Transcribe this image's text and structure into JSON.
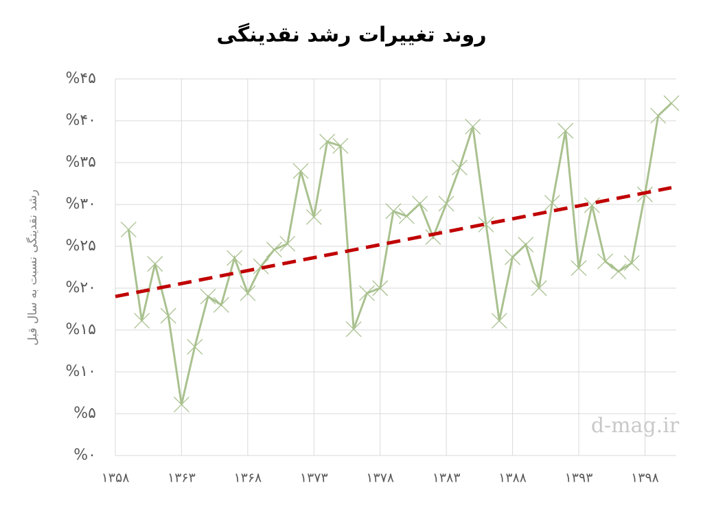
{
  "chart_data": {
    "type": "line",
    "title": "روند تغییرات رشد نقدینگی",
    "y_label": "رشد نقدینگی نسبت به سال قبل",
    "watermark": "d-mag.ir",
    "x": [
      1359,
      1360,
      1361,
      1362,
      1363,
      1364,
      1365,
      1366,
      1367,
      1368,
      1369,
      1370,
      1371,
      1372,
      1373,
      1374,
      1375,
      1376,
      1377,
      1378,
      1379,
      1380,
      1381,
      1382,
      1383,
      1384,
      1385,
      1386,
      1387,
      1388,
      1389,
      1390,
      1391,
      1392,
      1393,
      1394,
      1395,
      1396,
      1397,
      1398,
      1399,
      1400
    ],
    "series": [
      {
        "color": "#a9c18f",
        "values": [
          27.0,
          16.1,
          22.9,
          16.7,
          6.1,
          13.0,
          19.0,
          18.0,
          23.6,
          19.4,
          22.6,
          24.6,
          25.3,
          34.0,
          28.5,
          37.5,
          37.0,
          15.1,
          19.4,
          20.0,
          29.2,
          28.6,
          30.1,
          26.1,
          30.1,
          34.4,
          39.3,
          27.6,
          16.1,
          23.7,
          25.2,
          20.0,
          30.2,
          38.8,
          22.4,
          29.9,
          23.2,
          22.0,
          23.0,
          31.2,
          40.6,
          42.1
        ]
      },
      {
        "color": "#c00000",
        "dashed": true,
        "x": [
          1358,
          1400
        ],
        "values": [
          19.0,
          32.0
        ]
      }
    ],
    "xlim": [
      1358,
      1400
    ],
    "xticks": [
      {
        "value": 1358,
        "label": "۱۳۵۸"
      },
      {
        "value": 1363,
        "label": "۱۳۶۳"
      },
      {
        "value": 1368,
        "label": "۱۳۶۸"
      },
      {
        "value": 1373,
        "label": "۱۳۷۳"
      },
      {
        "value": 1378,
        "label": "۱۳۷۸"
      },
      {
        "value": 1383,
        "label": "۱۳۸۳"
      },
      {
        "value": 1388,
        "label": "۱۳۸۸"
      },
      {
        "value": 1393,
        "label": "۱۳۹۳"
      },
      {
        "value": 1398,
        "label": "۱۳۹۸"
      }
    ],
    "ylim": [
      0,
      45
    ],
    "yticks": [
      {
        "value": 0,
        "label": "%۰"
      },
      {
        "value": 5,
        "label": "%۵"
      },
      {
        "value": 10,
        "label": "%۱۰"
      },
      {
        "value": 15,
        "label": "%۱۵"
      },
      {
        "value": 20,
        "label": "%۲۰"
      },
      {
        "value": 25,
        "label": "%۲۵"
      },
      {
        "value": 30,
        "label": "%۳۰"
      },
      {
        "value": 35,
        "label": "%۳۵"
      },
      {
        "value": 40,
        "label": "%۴۰"
      },
      {
        "value": 45,
        "label": "%۴۵"
      }
    ],
    "grid": true
  }
}
